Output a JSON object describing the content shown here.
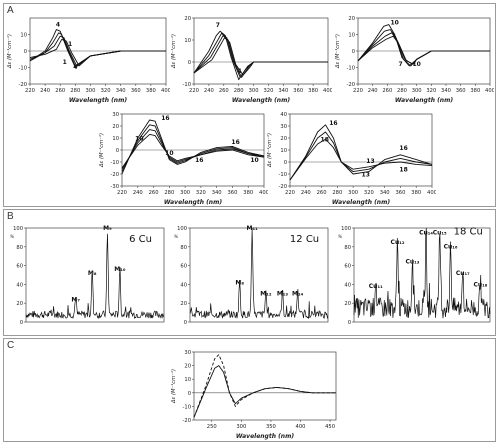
{
  "panels": {
    "A": "A",
    "B": "B",
    "C": "C"
  },
  "chart_data": [
    {
      "id": "a1",
      "type": "line",
      "xlabel": "Wavelength (nm)",
      "ylabel": "Δε (M⁻¹cm⁻¹)",
      "xlim": [
        220,
        400
      ],
      "ylim": [
        -20,
        20
      ],
      "xticks": [
        220,
        240,
        260,
        280,
        300,
        320,
        340,
        360,
        380,
        400
      ],
      "yticks": [
        -20,
        -10,
        0,
        10
      ],
      "annotations": [
        {
          "text": "4",
          "x": 257,
          "y": 15
        },
        {
          "text": "1",
          "x": 273,
          "y": 3
        },
        {
          "text": "1",
          "x": 266,
          "y": -8
        },
        {
          "text": "4",
          "x": 280,
          "y": -11
        }
      ],
      "series": [
        {
          "x": [
            220,
            240,
            250,
            255,
            260,
            270,
            280,
            300,
            340,
            400
          ],
          "y": [
            -6,
            0,
            8,
            13,
            12,
            0,
            -10,
            -3,
            0,
            0
          ]
        },
        {
          "x": [
            220,
            240,
            250,
            258,
            262,
            270,
            280,
            300,
            340,
            400
          ],
          "y": [
            -6,
            -1,
            5,
            11,
            10,
            1,
            -9,
            -3,
            0,
            0
          ]
        },
        {
          "x": [
            220,
            240,
            252,
            260,
            265,
            272,
            282,
            300,
            340,
            400
          ],
          "y": [
            -5,
            -1,
            3,
            9,
            8,
            0,
            -9,
            -3,
            0,
            0
          ]
        },
        {
          "x": [
            220,
            240,
            255,
            262,
            268,
            275,
            285,
            300,
            340,
            400
          ],
          "y": [
            -4,
            -2,
            1,
            7,
            6,
            -1,
            -9,
            -3,
            0,
            0
          ]
        }
      ]
    },
    {
      "id": "a2",
      "type": "line",
      "xlabel": "Wavelength (nm)",
      "ylabel": "Δε (M⁻¹cm⁻¹)",
      "xlim": [
        220,
        400
      ],
      "ylim": [
        -10,
        20
      ],
      "xticks": [
        220,
        240,
        260,
        280,
        300,
        320,
        340,
        360,
        380,
        400
      ],
      "yticks": [
        -10,
        0,
        10,
        20
      ],
      "annotations": [
        {
          "text": "7",
          "x": 252,
          "y": 16
        },
        {
          "text": "4",
          "x": 281,
          "y": -5
        }
      ],
      "series": [
        {
          "x": [
            220,
            240,
            250,
            255,
            262,
            270,
            280,
            290,
            300,
            340,
            400
          ],
          "y": [
            -5,
            5,
            12,
            14,
            12,
            2,
            -8,
            -3,
            0,
            0,
            0
          ]
        },
        {
          "x": [
            220,
            240,
            252,
            257,
            264,
            272,
            282,
            292,
            300,
            340,
            400
          ],
          "y": [
            -5,
            3,
            10,
            13,
            11,
            1,
            -7,
            -2,
            0,
            0,
            0
          ]
        },
        {
          "x": [
            220,
            242,
            254,
            259,
            266,
            274,
            284,
            294,
            300,
            340,
            400
          ],
          "y": [
            -5,
            2,
            9,
            12,
            10,
            0,
            -7,
            -2,
            0,
            0,
            0
          ]
        },
        {
          "x": [
            220,
            244,
            256,
            261,
            268,
            276,
            286,
            296,
            300,
            340,
            400
          ],
          "y": [
            -5,
            1,
            8,
            11,
            9,
            -1,
            -6,
            -2,
            0,
            0,
            0
          ]
        }
      ]
    },
    {
      "id": "a3",
      "type": "line",
      "xlabel": "Wavelength (nm)",
      "ylabel": "Δε (M⁻¹cm⁻¹)",
      "xlim": [
        220,
        400
      ],
      "ylim": [
        -20,
        20
      ],
      "xticks": [
        220,
        240,
        260,
        280,
        300,
        320,
        340,
        360,
        380,
        400
      ],
      "yticks": [
        -20,
        -10,
        0,
        10,
        20
      ],
      "annotations": [
        {
          "text": "10",
          "x": 270,
          "y": 16
        },
        {
          "text": "7",
          "x": 278,
          "y": -9
        },
        {
          "text": "10",
          "x": 300,
          "y": -9
        }
      ],
      "series": [
        {
          "x": [
            220,
            240,
            255,
            262,
            270,
            280,
            290,
            300,
            320,
            400
          ],
          "y": [
            -6,
            5,
            15,
            16,
            10,
            -4,
            -9,
            -5,
            0,
            0
          ]
        },
        {
          "x": [
            220,
            240,
            256,
            264,
            272,
            282,
            292,
            300,
            320,
            400
          ],
          "y": [
            -6,
            4,
            12,
            13,
            8,
            -5,
            -9,
            -5,
            0,
            0
          ]
        },
        {
          "x": [
            220,
            240,
            257,
            266,
            274,
            284,
            294,
            300,
            320,
            400
          ],
          "y": [
            -6,
            3,
            9,
            11,
            6,
            -5,
            -8,
            -5,
            0,
            0
          ]
        },
        {
          "x": [
            220,
            240,
            258,
            268,
            276,
            286,
            296,
            300,
            320,
            400
          ],
          "y": [
            -6,
            2,
            7,
            9,
            4,
            -6,
            -8,
            -5,
            0,
            0
          ]
        }
      ]
    },
    {
      "id": "a4",
      "type": "line",
      "xlabel": "Wavelength (nm)",
      "ylabel": "Δε (M⁻¹cm⁻¹)",
      "xlim": [
        220,
        400
      ],
      "ylim": [
        -30,
        30
      ],
      "xticks": [
        220,
        240,
        260,
        280,
        300,
        320,
        340,
        360,
        380,
        400
      ],
      "yticks": [
        -30,
        -20,
        -10,
        0,
        10,
        20,
        30
      ],
      "annotations": [
        {
          "text": "16",
          "x": 275,
          "y": 25
        },
        {
          "text": "10",
          "x": 242,
          "y": 8
        },
        {
          "text": "10",
          "x": 280,
          "y": -4
        },
        {
          "text": "16",
          "x": 318,
          "y": -10
        },
        {
          "text": "16",
          "x": 364,
          "y": 5
        },
        {
          "text": "10",
          "x": 388,
          "y": -10
        }
      ],
      "series": [
        {
          "x": [
            220,
            240,
            255,
            262,
            270,
            280,
            290,
            300,
            320,
            340,
            360,
            380,
            400
          ],
          "y": [
            -20,
            10,
            25,
            24,
            10,
            -8,
            -12,
            -10,
            -2,
            2,
            3,
            -2,
            -5
          ]
        },
        {
          "x": [
            220,
            240,
            255,
            262,
            270,
            280,
            290,
            300,
            320,
            340,
            360,
            380,
            400
          ],
          "y": [
            -18,
            8,
            21,
            20,
            8,
            -7,
            -11,
            -9,
            -3,
            1,
            2,
            -3,
            -5
          ]
        },
        {
          "x": [
            220,
            240,
            255,
            262,
            270,
            280,
            290,
            300,
            320,
            340,
            360,
            380,
            400
          ],
          "y": [
            -16,
            6,
            17,
            16,
            6,
            -6,
            -10,
            -8,
            -4,
            0,
            1,
            -3,
            -6
          ]
        },
        {
          "x": [
            220,
            240,
            255,
            262,
            270,
            280,
            290,
            300,
            320,
            340,
            360,
            380,
            400
          ],
          "y": [
            -15,
            4,
            13,
            12,
            4,
            -5,
            -9,
            -7,
            -4,
            -1,
            0,
            -4,
            -6
          ]
        }
      ]
    },
    {
      "id": "a5",
      "type": "line",
      "xlabel": "Wavelength (nm)",
      "ylabel": "Δε (M⁻¹cm⁻¹)",
      "xlim": [
        220,
        400
      ],
      "ylim": [
        -20,
        40
      ],
      "xticks": [
        220,
        240,
        260,
        280,
        300,
        320,
        340,
        360,
        380,
        400
      ],
      "yticks": [
        -20,
        -10,
        0,
        10,
        20,
        30,
        40
      ],
      "annotations": [
        {
          "text": "16",
          "x": 275,
          "y": 31
        },
        {
          "text": "18",
          "x": 264,
          "y": 17
        },
        {
          "text": "13",
          "x": 322,
          "y": -1
        },
        {
          "text": "13",
          "x": 316,
          "y": -12
        },
        {
          "text": "16",
          "x": 364,
          "y": 10
        },
        {
          "text": "18",
          "x": 364,
          "y": -8
        }
      ],
      "series": [
        {
          "x": [
            220,
            240,
            255,
            265,
            275,
            285,
            300,
            320,
            340,
            360,
            380,
            400
          ],
          "y": [
            -15,
            5,
            25,
            31,
            20,
            0,
            -10,
            -8,
            2,
            6,
            2,
            -2
          ]
        },
        {
          "x": [
            220,
            240,
            255,
            265,
            275,
            285,
            300,
            320,
            340,
            360,
            380,
            400
          ],
          "y": [
            -15,
            4,
            20,
            25,
            16,
            0,
            -8,
            -6,
            0,
            3,
            0,
            -2
          ]
        },
        {
          "x": [
            220,
            240,
            255,
            265,
            275,
            285,
            300,
            320,
            340,
            360,
            380,
            400
          ],
          "y": [
            -15,
            3,
            15,
            19,
            12,
            0,
            -6,
            -4,
            -1,
            0,
            -2,
            -3
          ]
        }
      ]
    },
    {
      "id": "b1",
      "type": "line",
      "ylabel": "%",
      "xlabel": "",
      "xlim": [
        0,
        10
      ],
      "ylim": [
        0,
        100
      ],
      "yticks": [
        0,
        20,
        40,
        60,
        80,
        100
      ],
      "annotations": [
        {
          "text": "6 Cu",
          "x": 8.3,
          "y": 85,
          "size": 10
        },
        {
          "text": "M₉",
          "x": 5.9,
          "y": 98
        },
        {
          "text": "M₈",
          "x": 4.8,
          "y": 50
        },
        {
          "text": "M₁₀",
          "x": 6.8,
          "y": 54
        },
        {
          "text": "M₇",
          "x": 3.6,
          "y": 22
        }
      ]
    },
    {
      "id": "b2",
      "type": "line",
      "ylabel": "%",
      "xlabel": "",
      "xlim": [
        0,
        10
      ],
      "ylim": [
        0,
        100
      ],
      "yticks": [
        0,
        20,
        40,
        60,
        80,
        100
      ],
      "annotations": [
        {
          "text": "12 Cu",
          "x": 8.3,
          "y": 85,
          "size": 10
        },
        {
          "text": "M₁₁",
          "x": 4.5,
          "y": 98
        },
        {
          "text": "M₈",
          "x": 3.6,
          "y": 40
        },
        {
          "text": "M₁₂",
          "x": 5.5,
          "y": 28
        },
        {
          "text": "M₁₃",
          "x": 6.7,
          "y": 28
        },
        {
          "text": "M₁₄",
          "x": 7.8,
          "y": 28
        }
      ]
    },
    {
      "id": "b3",
      "type": "line",
      "ylabel": "%",
      "xlabel": "",
      "xlim": [
        0,
        10
      ],
      "ylim": [
        0,
        100
      ],
      "yticks": [
        0,
        20,
        40,
        60,
        80,
        100
      ],
      "annotations": [
        {
          "text": "18 Cu",
          "x": 8.4,
          "y": 93,
          "size": 10
        },
        {
          "text": "Cu₁₂",
          "x": 3.2,
          "y": 83
        },
        {
          "text": "Cu₁₃",
          "x": 4.3,
          "y": 62
        },
        {
          "text": "Cu₁₄",
          "x": 5.3,
          "y": 93
        },
        {
          "text": "Cu₁₅",
          "x": 6.3,
          "y": 93
        },
        {
          "text": "Cu₁₆",
          "x": 7.1,
          "y": 78
        },
        {
          "text": "Cu₁₇",
          "x": 8.0,
          "y": 50
        },
        {
          "text": "Cu₁₈",
          "x": 9.3,
          "y": 38
        },
        {
          "text": "Cu₁₁",
          "x": 1.6,
          "y": 36
        }
      ]
    },
    {
      "id": "c1",
      "type": "line",
      "xlabel": "Wavelength (nm)",
      "ylabel": "Δε (M⁻¹cm⁻¹)",
      "xlim": [
        220,
        460
      ],
      "ylim": [
        -20,
        30
      ],
      "xticks": [
        250,
        300,
        350,
        400,
        450
      ],
      "yticks": [
        -20,
        -10,
        0,
        10,
        20,
        30
      ],
      "series": [
        {
          "x": [
            220,
            240,
            255,
            262,
            270,
            280,
            290,
            300,
            320,
            340,
            360,
            380,
            400,
            420,
            460
          ],
          "y": [
            -18,
            5,
            25,
            28,
            20,
            0,
            -10,
            -5,
            0,
            3,
            4,
            3,
            1,
            0,
            0
          ],
          "dash": true
        },
        {
          "x": [
            220,
            240,
            255,
            262,
            270,
            280,
            290,
            300,
            320,
            340,
            360,
            380,
            400,
            420,
            460
          ],
          "y": [
            -18,
            3,
            18,
            20,
            15,
            0,
            -8,
            -4,
            0,
            3,
            4,
            3,
            1,
            0,
            0
          ]
        }
      ]
    }
  ]
}
